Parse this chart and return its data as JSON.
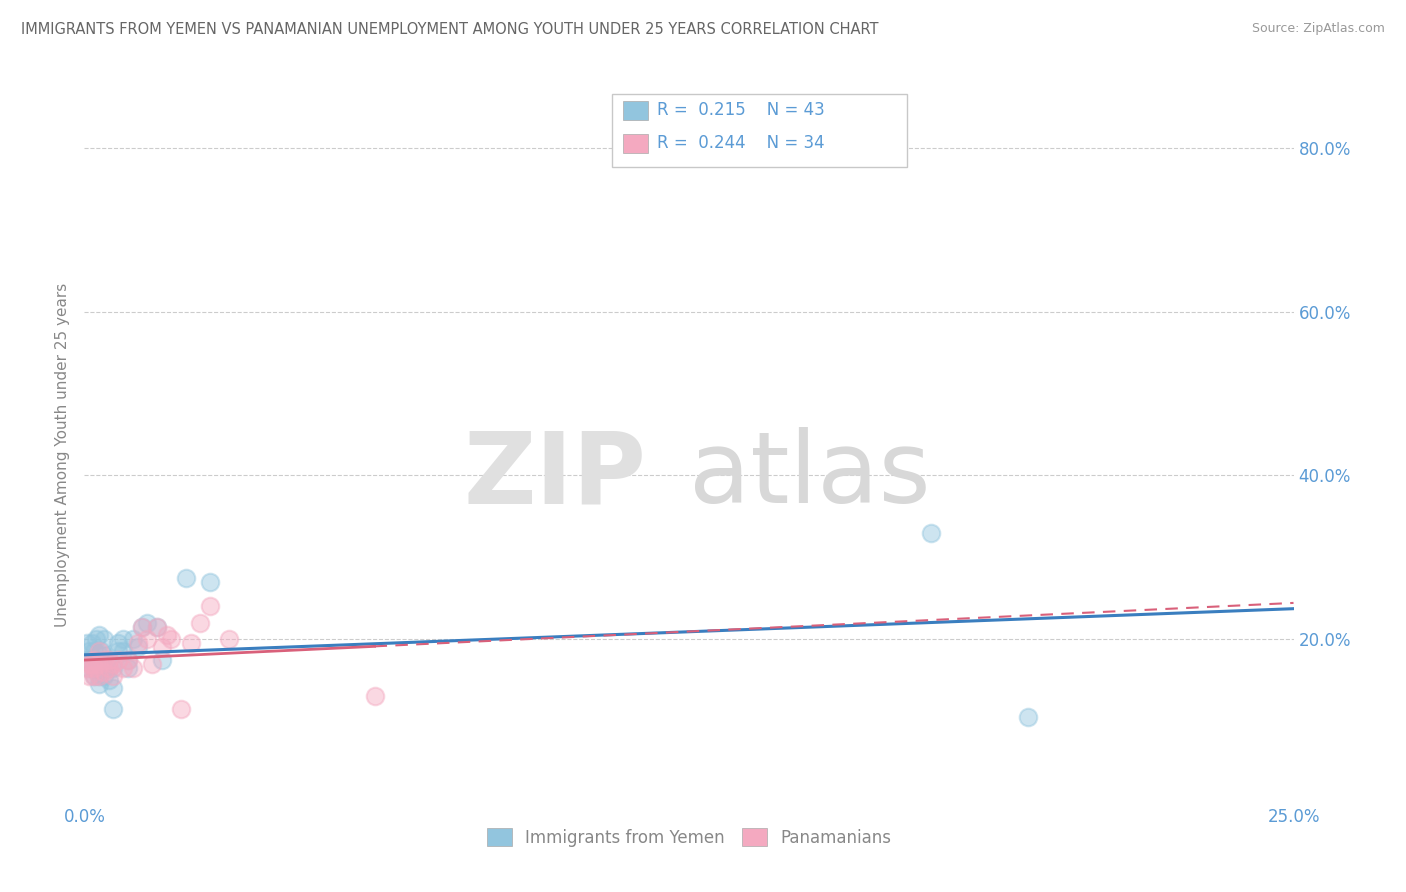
{
  "title": "IMMIGRANTS FROM YEMEN VS PANAMANIAN UNEMPLOYMENT AMONG YOUTH UNDER 25 YEARS CORRELATION CHART",
  "source": "Source: ZipAtlas.com",
  "ylabel": "Unemployment Among Youth under 25 years",
  "legend1_label": "Immigrants from Yemen",
  "legend2_label": "Panamanians",
  "r1": "0.215",
  "n1": "43",
  "r2": "0.244",
  "n2": "34",
  "blue_color": "#92c5de",
  "pink_color": "#f4a9c0",
  "blue_line_color": "#3a7ebf",
  "pink_line_color": "#d9607a",
  "axis_label_color": "#5b9bd5",
  "title_color": "#666666",
  "source_color": "#999999",
  "ylabel_color": "#888888",
  "blue_scatter_x": [
    0.0005,
    0.0008,
    0.001,
    0.001,
    0.001,
    0.0015,
    0.002,
    0.002,
    0.002,
    0.002,
    0.0025,
    0.003,
    0.003,
    0.003,
    0.003,
    0.003,
    0.0035,
    0.004,
    0.004,
    0.004,
    0.004,
    0.005,
    0.005,
    0.005,
    0.006,
    0.006,
    0.006,
    0.007,
    0.007,
    0.008,
    0.008,
    0.009,
    0.009,
    0.01,
    0.011,
    0.012,
    0.013,
    0.015,
    0.016,
    0.021,
    0.026,
    0.175,
    0.195
  ],
  "blue_scatter_y": [
    0.195,
    0.175,
    0.185,
    0.175,
    0.165,
    0.195,
    0.155,
    0.165,
    0.175,
    0.185,
    0.2,
    0.145,
    0.155,
    0.165,
    0.18,
    0.205,
    0.185,
    0.155,
    0.165,
    0.18,
    0.2,
    0.15,
    0.165,
    0.175,
    0.115,
    0.14,
    0.165,
    0.185,
    0.195,
    0.185,
    0.2,
    0.165,
    0.175,
    0.2,
    0.19,
    0.215,
    0.22,
    0.215,
    0.175,
    0.275,
    0.27,
    0.33,
    0.105
  ],
  "pink_scatter_x": [
    0.0005,
    0.001,
    0.001,
    0.0015,
    0.002,
    0.002,
    0.002,
    0.003,
    0.003,
    0.003,
    0.004,
    0.004,
    0.005,
    0.005,
    0.006,
    0.006,
    0.007,
    0.008,
    0.009,
    0.01,
    0.011,
    0.012,
    0.013,
    0.014,
    0.015,
    0.016,
    0.017,
    0.018,
    0.02,
    0.022,
    0.024,
    0.026,
    0.03,
    0.06
  ],
  "pink_scatter_y": [
    0.165,
    0.155,
    0.17,
    0.17,
    0.155,
    0.165,
    0.175,
    0.155,
    0.17,
    0.185,
    0.16,
    0.175,
    0.165,
    0.175,
    0.155,
    0.17,
    0.175,
    0.165,
    0.175,
    0.165,
    0.195,
    0.215,
    0.2,
    0.17,
    0.215,
    0.19,
    0.205,
    0.2,
    0.115,
    0.195,
    0.22,
    0.24,
    0.2,
    0.13
  ],
  "xlim": [
    0.0,
    0.25
  ],
  "ylim": [
    0.0,
    0.85
  ],
  "yticks": [
    0.2,
    0.4,
    0.6,
    0.8
  ],
  "ytick_labels": [
    "20.0%",
    "40.0%",
    "60.0%",
    "80.0%"
  ],
  "xtick_labels": [
    "0.0%",
    "25.0%"
  ]
}
